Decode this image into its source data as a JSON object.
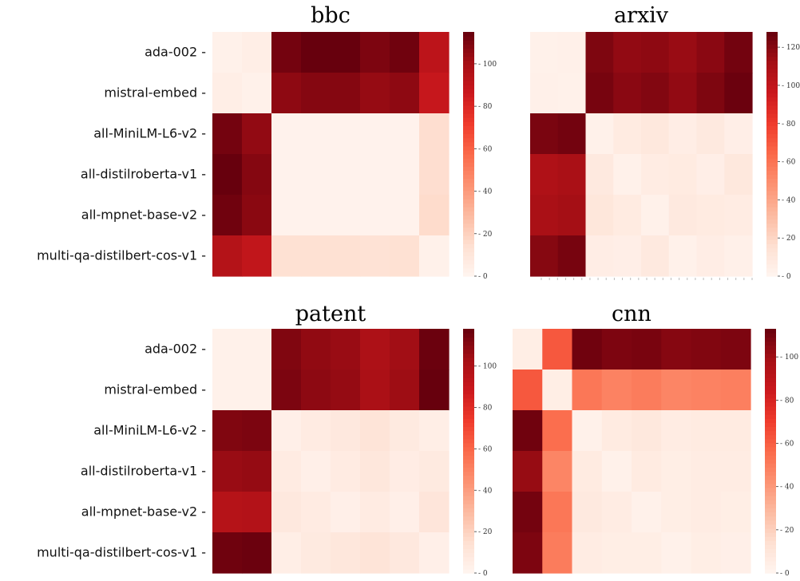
{
  "chart_data": [
    {
      "type": "heatmap",
      "title": "bbc",
      "rows": [
        "ada-002",
        "mistral-embed",
        "all-MiniLM-L6-v2",
        "all-distilroberta-v1",
        "all-mpnet-base-v2",
        "multi-qa-distilbert-cos-v1"
      ],
      "show_row_labels": true,
      "colorbar": {
        "min": 0,
        "max": 115,
        "ticks": [
          0,
          20,
          40,
          60,
          80,
          100
        ]
      },
      "values": [
        [
          3,
          5,
          112,
          115,
          115,
          110,
          113,
          92
        ],
        [
          5,
          3,
          106,
          108,
          108,
          104,
          106,
          88
        ],
        [
          112,
          105,
          2,
          2,
          2,
          2,
          2,
          15
        ],
        [
          115,
          108,
          2,
          2,
          2,
          2,
          2,
          15
        ],
        [
          113,
          107,
          2,
          2,
          2,
          2,
          2,
          16
        ],
        [
          95,
          90,
          14,
          14,
          14,
          13,
          14,
          3
        ]
      ]
    },
    {
      "type": "heatmap",
      "title": "arxiv",
      "rows": [
        "ada-002",
        "mistral-embed",
        "all-MiniLM-L6-v2",
        "all-distilroberta-v1",
        "all-mpnet-base-v2",
        "multi-qa-distilbert-cos-v1"
      ],
      "show_row_labels": false,
      "colorbar": {
        "min": 0,
        "max": 128,
        "ticks": [
          0,
          20,
          40,
          60,
          80,
          100,
          120
        ]
      },
      "values": [
        [
          3,
          4,
          122,
          117,
          118,
          115,
          119,
          125
        ],
        [
          4,
          3,
          124,
          119,
          121,
          117,
          122,
          127
        ],
        [
          123,
          125,
          3,
          8,
          10,
          6,
          9,
          5
        ],
        [
          108,
          110,
          9,
          3,
          7,
          8,
          5,
          10
        ],
        [
          110,
          112,
          11,
          8,
          3,
          9,
          8,
          7
        ],
        [
          120,
          124,
          6,
          5,
          9,
          3,
          6,
          4
        ]
      ]
    },
    {
      "type": "heatmap",
      "title": "patent",
      "rows": [
        "ada-002",
        "mistral-embed",
        "all-MiniLM-L6-v2",
        "all-distilroberta-v1",
        "all-mpnet-base-v2",
        "multi-qa-distilbert-cos-v1"
      ],
      "show_row_labels": true,
      "colorbar": {
        "min": 0,
        "max": 118,
        "ticks": [
          0,
          20,
          40,
          60,
          80,
          100
        ]
      },
      "values": [
        [
          3,
          3,
          112,
          108,
          106,
          100,
          104,
          117
        ],
        [
          3,
          3,
          113,
          109,
          107,
          101,
          105,
          118
        ],
        [
          112,
          113,
          4,
          7,
          9,
          12,
          8,
          5
        ],
        [
          106,
          107,
          7,
          4,
          7,
          10,
          6,
          8
        ],
        [
          97,
          98,
          9,
          7,
          4,
          7,
          4,
          11
        ],
        [
          116,
          117,
          5,
          8,
          10,
          12,
          9,
          4
        ]
      ]
    },
    {
      "type": "heatmap",
      "title": "cnn",
      "rows": [
        "ada-002",
        "mistral-embed",
        "all-MiniLM-L6-v2",
        "all-distilroberta-v1",
        "all-mpnet-base-v2",
        "multi-qa-distilbert-cos-v1"
      ],
      "show_row_labels": false,
      "colorbar": {
        "min": 0,
        "max": 113,
        "ticks": [
          0,
          20,
          40,
          60,
          80,
          100
        ]
      },
      "values": [
        [
          5,
          62,
          111,
          108,
          109,
          106,
          107,
          108
        ],
        [
          62,
          5,
          52,
          48,
          50,
          47,
          48,
          49
        ],
        [
          111,
          55,
          3,
          7,
          9,
          6,
          7,
          7
        ],
        [
          102,
          47,
          7,
          3,
          7,
          5,
          6,
          6
        ],
        [
          110,
          52,
          8,
          6,
          3,
          5,
          6,
          5
        ],
        [
          108,
          50,
          6,
          5,
          5,
          3,
          5,
          4
        ]
      ]
    }
  ]
}
